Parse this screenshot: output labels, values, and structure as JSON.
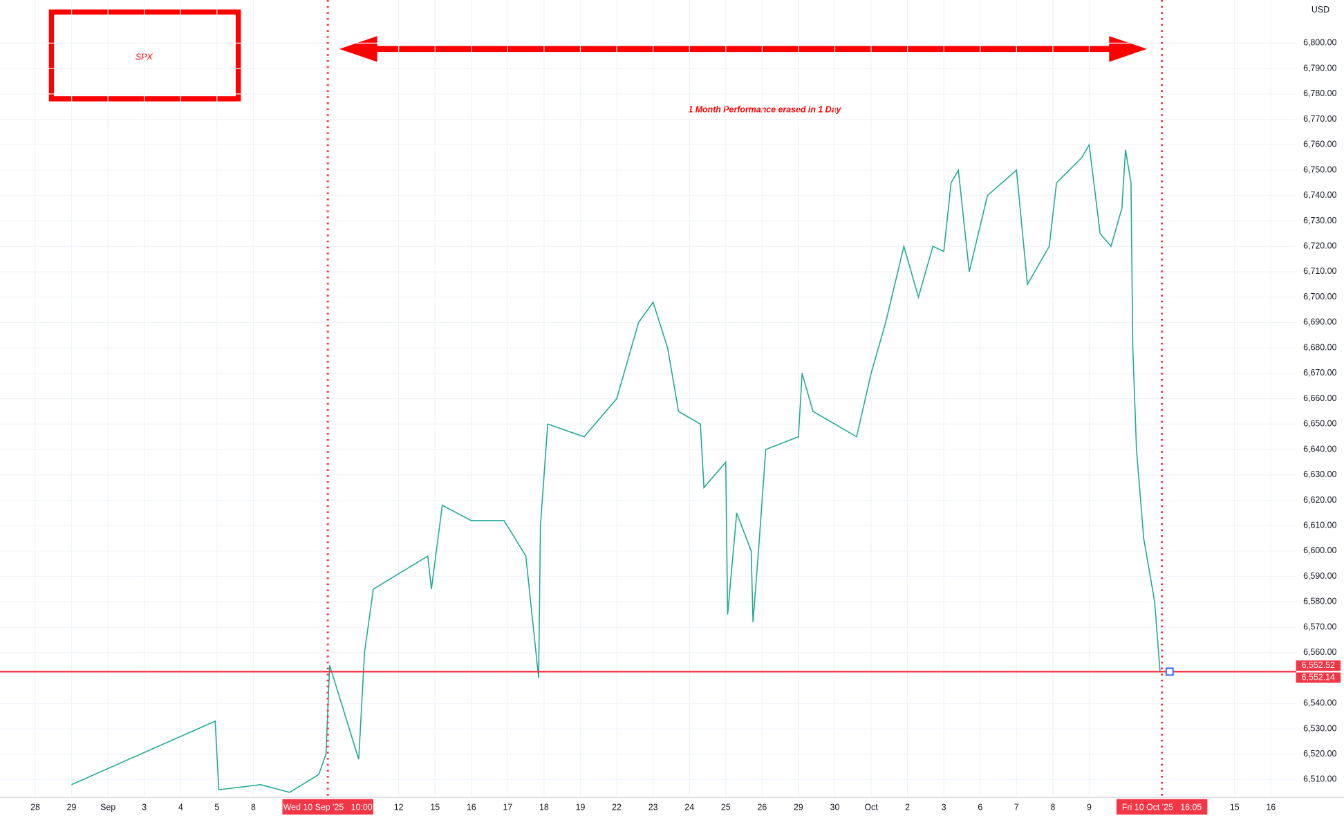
{
  "chart_data": {
    "type": "line",
    "title": "SPX",
    "annotation": "1 Month Performance erased in 1 Day",
    "currency": "USD",
    "xlim": [
      -0.97,
      34.69
    ],
    "ylim": [
      6503,
      6817
    ],
    "x": [
      1,
      4.95,
      5.05,
      6.2,
      7,
      7.8,
      8,
      8.1,
      8.9,
      9.06,
      9.3,
      10.8,
      10.9,
      11.2,
      12,
      12.9,
      13.5,
      13.85,
      13.9,
      14.1,
      15.1,
      16,
      16.6,
      17,
      17.4,
      17.7,
      18.3,
      18.4,
      19,
      19.05,
      19.3,
      19.7,
      19.75,
      19.9,
      20.1,
      21,
      21.1,
      21.4,
      22.6,
      23,
      23.4,
      23.9,
      24.3,
      24.7,
      25,
      25.2,
      25.4,
      25.7,
      26.2,
      27,
      27.3,
      27.9,
      28.1,
      28.8,
      29,
      29.3,
      29.6,
      29.9,
      30,
      30.15,
      30.2,
      30.3,
      30.5,
      30.8,
      30.95
    ],
    "series": [
      {
        "name": "SPX",
        "color": "#22ab94",
        "values": [
          6508,
          6533,
          6506,
          6508,
          6505,
          6512,
          6520,
          6555,
          6518,
          6560,
          6585,
          6598,
          6585,
          6618,
          6612,
          6612,
          6598,
          6550,
          6610,
          6650,
          6645,
          6660,
          6690,
          6698,
          6680,
          6655,
          6650,
          6625,
          6635,
          6575,
          6615,
          6600,
          6572,
          6600,
          6640,
          6645,
          6670,
          6655,
          6645,
          6670,
          6690,
          6720,
          6700,
          6720,
          6718,
          6745,
          6750,
          6710,
          6740,
          6750,
          6705,
          6720,
          6745,
          6755,
          6760,
          6725,
          6720,
          6735,
          6758,
          6745,
          6680,
          6640,
          6605,
          6580,
          6552.52
        ]
      }
    ],
    "xticks": [
      {
        "value": 0,
        "label": "28"
      },
      {
        "value": 1,
        "label": "29"
      },
      {
        "value": 2,
        "label": "Sep"
      },
      {
        "value": 3,
        "label": "3"
      },
      {
        "value": 4,
        "label": "4"
      },
      {
        "value": 5,
        "label": "5"
      },
      {
        "value": 6,
        "label": "8"
      },
      {
        "value": 10,
        "label": "12"
      },
      {
        "value": 11,
        "label": "15"
      },
      {
        "value": 12,
        "label": "16"
      },
      {
        "value": 13,
        "label": "17"
      },
      {
        "value": 14,
        "label": "18"
      },
      {
        "value": 15,
        "label": "19"
      },
      {
        "value": 16,
        "label": "22"
      },
      {
        "value": 17,
        "label": "23"
      },
      {
        "value": 18,
        "label": "24"
      },
      {
        "value": 19,
        "label": "25"
      },
      {
        "value": 20,
        "label": "26"
      },
      {
        "value": 21,
        "label": "29"
      },
      {
        "value": 22,
        "label": "30"
      },
      {
        "value": 23,
        "label": "Oct"
      },
      {
        "value": 24,
        "label": "2"
      },
      {
        "value": 25,
        "label": "3"
      },
      {
        "value": 26,
        "label": "6"
      },
      {
        "value": 27,
        "label": "7"
      },
      {
        "value": 28,
        "label": "8"
      },
      {
        "value": 29,
        "label": "9"
      },
      {
        "value": 33,
        "label": "15"
      },
      {
        "value": 34,
        "label": "16"
      }
    ],
    "yticks": [
      {
        "value": 6510,
        "label": "6,510.00"
      },
      {
        "value": 6520,
        "label": "6,520.00"
      },
      {
        "value": 6530,
        "label": "6,530.00"
      },
      {
        "value": 6540,
        "label": "6,540.00"
      },
      {
        "value": 6560,
        "label": "6,560.00"
      },
      {
        "value": 6570,
        "label": "6,570.00"
      },
      {
        "value": 6580,
        "label": "6,580.00"
      },
      {
        "value": 6590,
        "label": "6,590.00"
      },
      {
        "value": 6600,
        "label": "6,600.00"
      },
      {
        "value": 6610,
        "label": "6,610.00"
      },
      {
        "value": 6620,
        "label": "6,620.00"
      },
      {
        "value": 6630,
        "label": "6,630.00"
      },
      {
        "value": 6640,
        "label": "6,640.00"
      },
      {
        "value": 6650,
        "label": "6,650.00"
      },
      {
        "value": 6660,
        "label": "6,660.00"
      },
      {
        "value": 6670,
        "label": "6,670.00"
      },
      {
        "value": 6680,
        "label": "6,680.00"
      },
      {
        "value": 6690,
        "label": "6,690.00"
      },
      {
        "value": 6700,
        "label": "6,700.00"
      },
      {
        "value": 6710,
        "label": "6,710.00"
      },
      {
        "value": 6720,
        "label": "6,720.00"
      },
      {
        "value": 6730,
        "label": "6,730.00"
      },
      {
        "value": 6740,
        "label": "6,740.00"
      },
      {
        "value": 6750,
        "label": "6,750.00"
      },
      {
        "value": 6760,
        "label": "6,760.00"
      },
      {
        "value": 6770,
        "label": "6,770.00"
      },
      {
        "value": 6780,
        "label": "6,780.00"
      },
      {
        "value": 6790,
        "label": "6,790.00"
      },
      {
        "value": 6800,
        "label": "6,800.00"
      }
    ],
    "xmarkers": [
      {
        "value": 8.05,
        "label": "Wed 10 Sep '25   10:00"
      },
      {
        "value": 31,
        "label": "Fri 10 Oct '25   16:05"
      }
    ],
    "price_labels": [
      {
        "value": 6552.52,
        "label": "6,552.52"
      },
      {
        "value": 6552.14,
        "label": "6,552.14"
      }
    ],
    "grid": true,
    "marker_color": "#f23645"
  }
}
